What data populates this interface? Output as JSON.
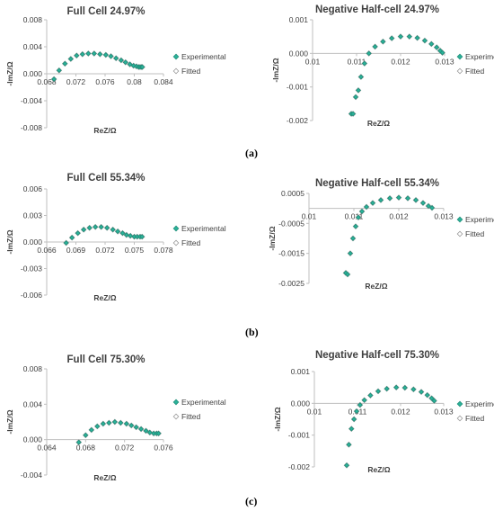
{
  "figure": {
    "panel_labels": [
      "(a)",
      "(b)",
      "(c)"
    ]
  },
  "colors": {
    "experimental": "#2bb39a",
    "fitted": "#9a9a9a",
    "axis": "#bfbfbf",
    "text": "#404040"
  },
  "chart_data": [
    {
      "type": "scatter",
      "title": "Full Cell 24.97%",
      "xlabel": "ReZ/Ω",
      "ylabel": "-ImZ/Ω",
      "xlim": [
        0.068,
        0.084
      ],
      "ylim": [
        -0.008,
        0.008
      ],
      "xticks": [
        "0.068",
        "0.072",
        "0.076",
        "0.08",
        "0.084"
      ],
      "yticks": [
        "-0.008",
        "-0.004",
        "0.000",
        "0.004",
        "0.008"
      ],
      "grid": false,
      "legend": "right",
      "series": [
        {
          "name": "Experimental",
          "x": [
            0.069,
            0.0697,
            0.0705,
            0.0713,
            0.0721,
            0.0729,
            0.0737,
            0.0745,
            0.0753,
            0.0761,
            0.0768,
            0.0775,
            0.0782,
            0.0788,
            0.0794,
            0.0799,
            0.0803,
            0.0806,
            0.0808,
            0.081,
            0.0811
          ],
          "y": [
            -0.0008,
            0.0005,
            0.0015,
            0.0022,
            0.0027,
            0.0029,
            0.003,
            0.003,
            0.0029,
            0.0028,
            0.0026,
            0.0023,
            0.002,
            0.0017,
            0.0014,
            0.0012,
            0.0011,
            0.001,
            0.001,
            0.001,
            0.001
          ]
        },
        {
          "name": "Fitted",
          "x": [
            0.069,
            0.0697,
            0.0705,
            0.0713,
            0.0721,
            0.0729,
            0.0737,
            0.0745,
            0.0753,
            0.0761,
            0.0768,
            0.0775,
            0.0782,
            0.0788,
            0.0794,
            0.0799,
            0.0803,
            0.0806,
            0.0808,
            0.081,
            0.0811
          ],
          "y": [
            -0.0008,
            0.0005,
            0.0015,
            0.0022,
            0.0027,
            0.0029,
            0.003,
            0.003,
            0.0029,
            0.0028,
            0.0026,
            0.0023,
            0.002,
            0.0017,
            0.0014,
            0.0012,
            0.0011,
            0.001,
            0.001,
            0.001,
            0.001
          ]
        }
      ]
    },
    {
      "type": "scatter",
      "title": "Negative Half-cell 24.97%",
      "xlabel": "ReZ/Ω",
      "ylabel": "-ImZ/Ω",
      "xlim": [
        0.01,
        0.013
      ],
      "ylim": [
        -0.002,
        0.001
      ],
      "xticks": [
        "0.01",
        "0.011",
        "0.012",
        "0.013"
      ],
      "yticks": [
        "-0.002",
        "-0.001",
        "0.000",
        "0.001"
      ],
      "grid": false,
      "legend": "right",
      "series": [
        {
          "name": "Experimental",
          "x": [
            0.01088,
            0.01092,
            0.01098,
            0.01104,
            0.0111,
            0.01118,
            0.01128,
            0.01142,
            0.0116,
            0.0118,
            0.012,
            0.0122,
            0.01238,
            0.01255,
            0.0127,
            0.01282,
            0.0129,
            0.01295
          ],
          "y": [
            -0.0018,
            -0.0018,
            -0.0013,
            -0.0011,
            -0.0007,
            -0.0003,
            0.0,
            0.0002,
            0.00035,
            0.00045,
            0.0005,
            0.0005,
            0.00046,
            0.00038,
            0.00028,
            0.00018,
            8e-05,
            2e-05
          ]
        },
        {
          "name": "Fitted",
          "x": [
            0.01088,
            0.01092,
            0.01098,
            0.01104,
            0.0111,
            0.01118,
            0.01128,
            0.01142,
            0.0116,
            0.0118,
            0.012,
            0.0122,
            0.01238,
            0.01255,
            0.0127,
            0.01282,
            0.0129,
            0.01295
          ],
          "y": [
            -0.0018,
            -0.0018,
            -0.0013,
            -0.0011,
            -0.0007,
            -0.0003,
            0.0,
            0.0002,
            0.00035,
            0.00045,
            0.0005,
            0.0005,
            0.00046,
            0.00038,
            0.00028,
            0.00018,
            8e-05,
            2e-05
          ]
        }
      ]
    },
    {
      "type": "scatter",
      "title": "Full Cell 55.34%",
      "xlabel": "ReZ/Ω",
      "ylabel": "-ImZ/Ω",
      "xlim": [
        0.066,
        0.078
      ],
      "ylim": [
        -0.006,
        0.006
      ],
      "xticks": [
        "0.066",
        "0.069",
        "0.072",
        "0.075",
        "0.078"
      ],
      "yticks": [
        "-0.006",
        "-0.003",
        "0.000",
        "0.003",
        "0.006"
      ],
      "grid": false,
      "legend": "right",
      "series": [
        {
          "name": "Experimental",
          "x": [
            0.068,
            0.0686,
            0.0692,
            0.0698,
            0.0704,
            0.071,
            0.0716,
            0.0722,
            0.0728,
            0.0733,
            0.0738,
            0.0742,
            0.0746,
            0.075,
            0.0753,
            0.0756,
            0.0758
          ],
          "y": [
            -0.0001,
            0.0005,
            0.001,
            0.0014,
            0.0016,
            0.0017,
            0.0017,
            0.0016,
            0.0014,
            0.0012,
            0.001,
            0.0008,
            0.0007,
            0.0006,
            0.0006,
            0.0006,
            0.0006
          ]
        },
        {
          "name": "Fitted",
          "x": [
            0.068,
            0.0686,
            0.0692,
            0.0698,
            0.0704,
            0.071,
            0.0716,
            0.0722,
            0.0728,
            0.0733,
            0.0738,
            0.0742,
            0.0746,
            0.075,
            0.0753,
            0.0756,
            0.0758
          ],
          "y": [
            -0.0001,
            0.0005,
            0.001,
            0.0014,
            0.0016,
            0.0017,
            0.0017,
            0.0016,
            0.0014,
            0.0012,
            0.001,
            0.0008,
            0.0007,
            0.0006,
            0.0006,
            0.0006,
            0.0006
          ]
        }
      ]
    },
    {
      "type": "scatter",
      "title": "Negative Half-cell 55.34%",
      "xlabel": "ReZ/Ω",
      "ylabel": "-ImZ/Ω",
      "xlim": [
        0.01,
        0.013
      ],
      "ylim": [
        -0.0025,
        0.0005
      ],
      "xticks": [
        "0.01",
        "0.011",
        "0.012",
        "0.013"
      ],
      "yticks": [
        "-0.0025",
        "-0.0015",
        "-0.0005",
        "0.0005"
      ],
      "grid": false,
      "legend": "right",
      "series": [
        {
          "name": "Experimental",
          "x": [
            0.01082,
            0.01086,
            0.01092,
            0.01098,
            0.01104,
            0.0111,
            0.01118,
            0.01128,
            0.01142,
            0.0116,
            0.0118,
            0.012,
            0.0122,
            0.01238,
            0.01254,
            0.01266,
            0.01274
          ],
          "y": [
            -0.00215,
            -0.0022,
            -0.0015,
            -0.001,
            -0.0006,
            -0.0003,
            -0.0001,
            5e-05,
            0.00018,
            0.00028,
            0.00034,
            0.00036,
            0.00034,
            0.00028,
            0.00018,
            8e-05,
            2e-05
          ]
        },
        {
          "name": "Fitted",
          "x": [
            0.01082,
            0.01086,
            0.01092,
            0.01098,
            0.01104,
            0.0111,
            0.01118,
            0.01128,
            0.01142,
            0.0116,
            0.0118,
            0.012,
            0.0122,
            0.01238,
            0.01254,
            0.01266,
            0.01274
          ],
          "y": [
            -0.00215,
            -0.0022,
            -0.0015,
            -0.001,
            -0.0006,
            -0.0003,
            -0.0001,
            5e-05,
            0.00018,
            0.00028,
            0.00034,
            0.00036,
            0.00034,
            0.00028,
            0.00018,
            8e-05,
            2e-05
          ]
        }
      ]
    },
    {
      "type": "scatter",
      "title": "Full Cell 75.30%",
      "xlabel": "ReZ/Ω",
      "ylabel": "-ImZ/Ω",
      "xlim": [
        0.064,
        0.076
      ],
      "ylim": [
        -0.004,
        0.008
      ],
      "xticks": [
        "0.064",
        "0.068",
        "0.072",
        "0.076"
      ],
      "yticks": [
        "-0.004",
        "0.000",
        "0.004",
        "0.008"
      ],
      "grid": false,
      "legend": "right",
      "series": [
        {
          "name": "Experimental",
          "x": [
            0.0673,
            0.068,
            0.0686,
            0.0692,
            0.0698,
            0.0704,
            0.071,
            0.0716,
            0.0722,
            0.0727,
            0.0732,
            0.0737,
            0.0742,
            0.0746,
            0.075,
            0.0753,
            0.0755
          ],
          "y": [
            -0.0003,
            0.0005,
            0.0011,
            0.0015,
            0.0018,
            0.0019,
            0.002,
            0.0019,
            0.0018,
            0.0016,
            0.0014,
            0.0012,
            0.001,
            0.0008,
            0.0007,
            0.0007,
            0.0007
          ]
        },
        {
          "name": "Fitted",
          "x": [
            0.0673,
            0.068,
            0.0686,
            0.0692,
            0.0698,
            0.0704,
            0.071,
            0.0716,
            0.0722,
            0.0727,
            0.0732,
            0.0737,
            0.0742,
            0.0746,
            0.075,
            0.0753,
            0.0755
          ],
          "y": [
            -0.0003,
            0.0005,
            0.0011,
            0.0015,
            0.0018,
            0.0019,
            0.002,
            0.0019,
            0.0018,
            0.0016,
            0.0014,
            0.0012,
            0.001,
            0.0008,
            0.0007,
            0.0007,
            0.0007
          ]
        }
      ]
    },
    {
      "type": "scatter",
      "title": "Negative Half-cell 75.30%",
      "xlabel": "ReZ/Ω",
      "ylabel": "-ImZ/Ω",
      "xlim": [
        0.01,
        0.013
      ],
      "ylim": [
        -0.002,
        0.001
      ],
      "xticks": [
        "0.01",
        "0.011",
        "0.012",
        "0.013"
      ],
      "yticks": [
        "-0.002",
        "-0.001",
        "0.000",
        "0.001"
      ],
      "grid": false,
      "legend": "right",
      "series": [
        {
          "name": "Experimental",
          "x": [
            0.01075,
            0.0108,
            0.01086,
            0.01092,
            0.01098,
            0.01106,
            0.01116,
            0.0113,
            0.01148,
            0.01168,
            0.0119,
            0.0121,
            0.0123,
            0.01248,
            0.01262,
            0.01272,
            0.01278
          ],
          "y": [
            -0.00195,
            -0.0013,
            -0.0008,
            -0.0005,
            -0.00025,
            -5e-05,
            0.0001,
            0.00025,
            0.00038,
            0.00046,
            0.0005,
            0.00049,
            0.00044,
            0.00036,
            0.00026,
            0.00016,
            8e-05
          ]
        },
        {
          "name": "Fitted",
          "x": [
            0.01075,
            0.0108,
            0.01086,
            0.01092,
            0.01098,
            0.01106,
            0.01116,
            0.0113,
            0.01148,
            0.01168,
            0.0119,
            0.0121,
            0.0123,
            0.01248,
            0.01262,
            0.01272,
            0.01278
          ],
          "y": [
            -0.00195,
            -0.0013,
            -0.0008,
            -0.0005,
            -0.00025,
            -5e-05,
            0.0001,
            0.00025,
            0.00038,
            0.00046,
            0.0005,
            0.00049,
            0.00044,
            0.00036,
            0.00026,
            0.00016,
            8e-05
          ]
        }
      ]
    }
  ]
}
